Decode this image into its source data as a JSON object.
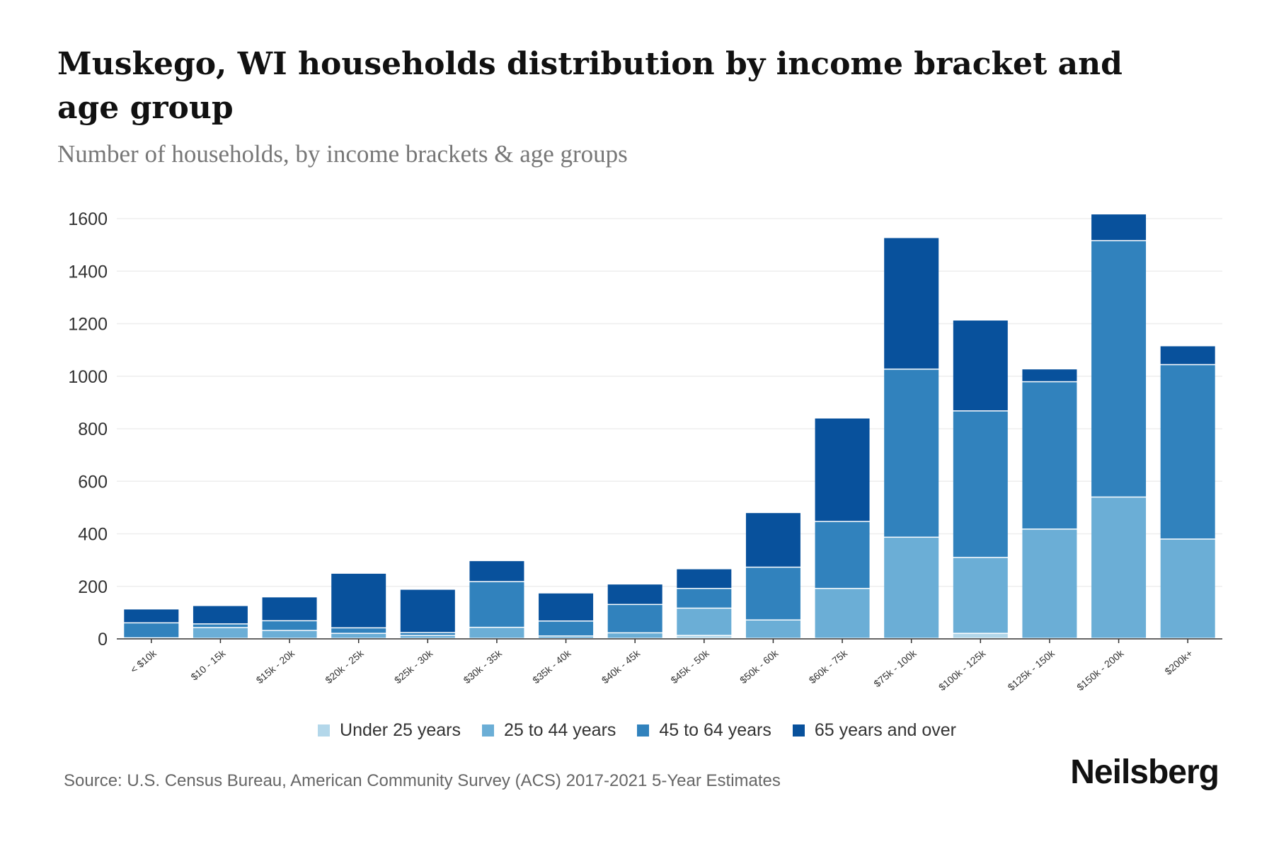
{
  "chart_data": {
    "type": "bar",
    "stacked": true,
    "title": "Muskego, WI households distribution by income bracket and age group",
    "subtitle": "Number of households, by income brackets & age groups",
    "xlabel": "",
    "ylabel": "",
    "ylim": [
      0,
      1600
    ],
    "yticks": [
      0,
      200,
      400,
      600,
      800,
      1000,
      1200,
      1400,
      1600
    ],
    "grid": true,
    "legend_position": "bottom",
    "categories": [
      "< $10k",
      "$10 - 15k",
      "$15k - 20k",
      "$20k - 25k",
      "$25k - 30k",
      "$30k - 35k",
      "$35k - 40k",
      "$40k - 45k",
      "$45k - 50k",
      "$50k - 60k",
      "$60k - 75k",
      "$75k - 100k",
      "$100k - 125k",
      "$125k - 150k",
      "$150k - 200k",
      "$200k+"
    ],
    "series": [
      {
        "name": "Under 25 years",
        "color": "#b3d7ea",
        "values": [
          0,
          0,
          0,
          0,
          0,
          0,
          0,
          0,
          11,
          0,
          0,
          0,
          19,
          0,
          0,
          0
        ]
      },
      {
        "name": "25 to 44 years",
        "color": "#6baed6",
        "values": [
          2,
          41,
          30,
          19,
          11,
          42,
          9,
          21,
          104,
          70,
          190,
          385,
          289,
          416,
          538,
          378
        ]
      },
      {
        "name": "45 to 64 years",
        "color": "#3182bd",
        "values": [
          57,
          14,
          37,
          21,
          11,
          174,
          57,
          108,
          75,
          201,
          255,
          640,
          558,
          561,
          976,
          664
        ]
      },
      {
        "name": "65 years and over",
        "color": "#08519c",
        "values": [
          53,
          70,
          91,
          208,
          165,
          80,
          107,
          78,
          75,
          208,
          394,
          501,
          346,
          49,
          102,
          72
        ]
      }
    ]
  },
  "source": "Source: U.S. Census Bureau, American Community Survey (ACS) 2017-2021 5-Year Estimates",
  "logo": "Neilsberg"
}
